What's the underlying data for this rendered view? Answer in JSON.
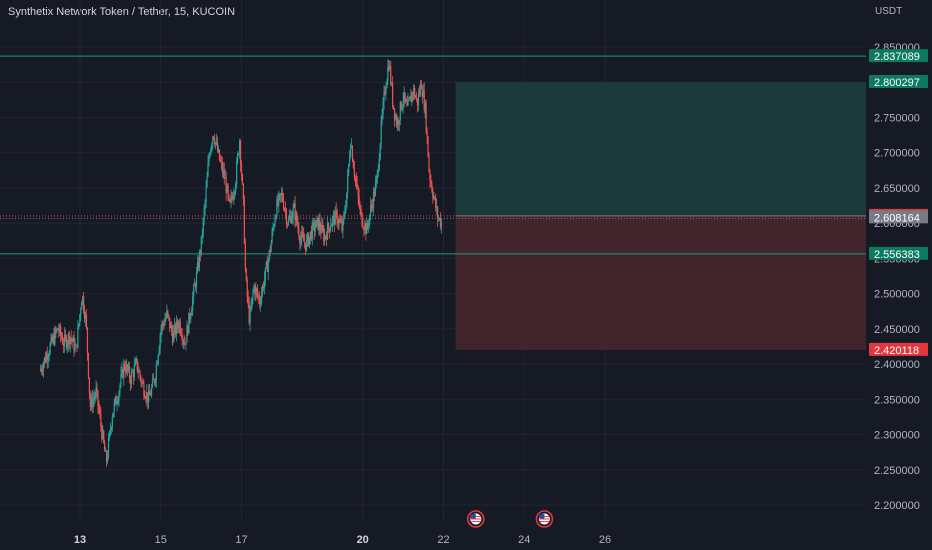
{
  "header": {
    "title": "Synthetix Network Token / Tether, 15, KUCOIN"
  },
  "chart_data": {
    "type": "candlestick",
    "currency_label": "USDT",
    "y_ticks": [
      "2.850000",
      "2.800000",
      "2.750000",
      "2.700000",
      "2.650000",
      "2.600000",
      "2.550000",
      "2.500000",
      "2.450000",
      "2.400000",
      "2.350000",
      "2.300000",
      "2.250000",
      "2.200000"
    ],
    "x_ticks": [
      "13",
      "15",
      "17",
      "20",
      "22",
      "24",
      "26"
    ],
    "x_ticks_bold": [
      "13",
      "20"
    ],
    "ylim": [
      2.18,
      2.88
    ],
    "xlim": [
      12.0,
      28.5
    ],
    "price_labels": [
      {
        "label": "2.837089",
        "value": 2.837089,
        "color": "#0b7a5f"
      },
      {
        "label": "2.800297",
        "value": 2.800297,
        "color": "#0b7a5f"
      },
      {
        "label": "2.610243",
        "value": 2.610243,
        "color": "#e2373f"
      },
      {
        "label": "2.608164",
        "value": 2.608164,
        "color": "#787b86"
      },
      {
        "label": "2.556383",
        "value": 2.556383,
        "color": "#0b7a5f"
      },
      {
        "label": "2.420118",
        "value": 2.420118,
        "color": "#e2373f"
      }
    ],
    "horizontal_lines": [
      {
        "value": 2.837089,
        "color": "#1f9c7c"
      },
      {
        "value": 2.556383,
        "color": "#1f9c7c"
      }
    ],
    "position": {
      "x_start": 22.3,
      "entry": 2.610243,
      "target": 2.800297,
      "stop": 2.420118,
      "profit_color": "#1a3b3a",
      "loss_color": "#42242d"
    },
    "current_price": 2.608164,
    "event_markers": [
      22.8,
      24.5
    ],
    "price_path": [
      [
        12.0,
        2.39
      ],
      [
        12.15,
        2.41
      ],
      [
        12.3,
        2.43
      ],
      [
        12.45,
        2.45
      ],
      [
        12.6,
        2.43
      ],
      [
        12.75,
        2.44
      ],
      [
        12.9,
        2.42
      ],
      [
        13.05,
        2.5
      ],
      [
        13.15,
        2.46
      ],
      [
        13.25,
        2.34
      ],
      [
        13.4,
        2.36
      ],
      [
        13.55,
        2.3
      ],
      [
        13.65,
        2.26
      ],
      [
        13.8,
        2.33
      ],
      [
        13.95,
        2.36
      ],
      [
        14.1,
        2.4
      ],
      [
        14.25,
        2.38
      ],
      [
        14.4,
        2.4
      ],
      [
        14.55,
        2.37
      ],
      [
        14.7,
        2.35
      ],
      [
        14.85,
        2.38
      ],
      [
        15.0,
        2.45
      ],
      [
        15.15,
        2.47
      ],
      [
        15.3,
        2.44
      ],
      [
        15.45,
        2.46
      ],
      [
        15.6,
        2.43
      ],
      [
        15.75,
        2.48
      ],
      [
        15.9,
        2.53
      ],
      [
        16.0,
        2.57
      ],
      [
        16.1,
        2.63
      ],
      [
        16.2,
        2.7
      ],
      [
        16.3,
        2.73
      ],
      [
        16.45,
        2.69
      ],
      [
        16.6,
        2.66
      ],
      [
        16.7,
        2.62
      ],
      [
        16.85,
        2.66
      ],
      [
        16.95,
        2.72
      ],
      [
        17.05,
        2.62
      ],
      [
        17.1,
        2.52
      ],
      [
        17.2,
        2.46
      ],
      [
        17.3,
        2.51
      ],
      [
        17.45,
        2.49
      ],
      [
        17.6,
        2.53
      ],
      [
        17.7,
        2.56
      ],
      [
        17.85,
        2.62
      ],
      [
        18.0,
        2.64
      ],
      [
        18.15,
        2.6
      ],
      [
        18.3,
        2.62
      ],
      [
        18.45,
        2.58
      ],
      [
        18.6,
        2.57
      ],
      [
        18.75,
        2.59
      ],
      [
        18.9,
        2.6
      ],
      [
        19.05,
        2.58
      ],
      [
        19.2,
        2.6
      ],
      [
        19.35,
        2.61
      ],
      [
        19.5,
        2.59
      ],
      [
        19.6,
        2.64
      ],
      [
        19.7,
        2.72
      ],
      [
        19.8,
        2.67
      ],
      [
        19.95,
        2.61
      ],
      [
        20.1,
        2.59
      ],
      [
        20.2,
        2.62
      ],
      [
        20.35,
        2.66
      ],
      [
        20.45,
        2.73
      ],
      [
        20.55,
        2.79
      ],
      [
        20.65,
        2.83
      ],
      [
        20.75,
        2.77
      ],
      [
        20.85,
        2.74
      ],
      [
        21.0,
        2.78
      ],
      [
        21.1,
        2.76
      ],
      [
        21.25,
        2.79
      ],
      [
        21.35,
        2.77
      ],
      [
        21.45,
        2.8
      ],
      [
        21.55,
        2.76
      ],
      [
        21.65,
        2.67
      ],
      [
        21.75,
        2.64
      ],
      [
        21.85,
        2.61
      ],
      [
        21.95,
        2.6
      ]
    ]
  }
}
